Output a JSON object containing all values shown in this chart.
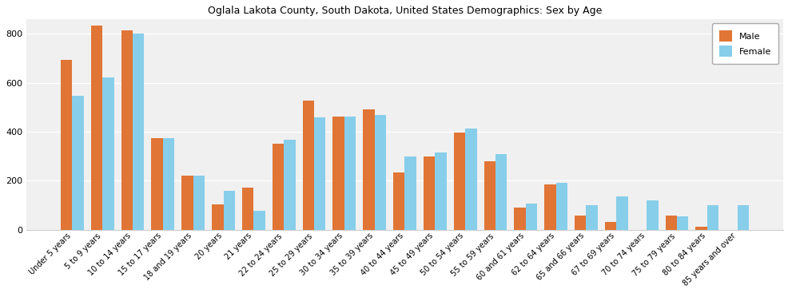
{
  "title": "Oglala Lakota County, South Dakota, United States Demographics: Sex by Age",
  "categories": [
    "Under 5 years",
    "5 to 9 years",
    "10 to 14 years",
    "15 to 17 years",
    "18 and 19 years",
    "20 years",
    "21 years",
    "22 to 24 years",
    "25 to 29 years",
    "30 to 34 years",
    "35 to 39 years",
    "40 to 44 years",
    "45 to 49 years",
    "50 to 54 years",
    "55 to 59 years",
    "60 and 61 years",
    "62 to 64 years",
    "65 and 66 years",
    "67 to 69 years",
    "70 to 74 years",
    "75 to 79 years",
    "80 to 84 years",
    "85 years and over"
  ],
  "male": [
    693,
    835,
    815,
    375,
    220,
    102,
    172,
    350,
    527,
    462,
    490,
    234,
    300,
    397,
    280,
    91,
    185,
    57,
    32,
    0,
    57,
    10,
    0
  ],
  "female": [
    548,
    622,
    800,
    375,
    220,
    157,
    78,
    368,
    457,
    462,
    468,
    297,
    315,
    413,
    310,
    105,
    192,
    100,
    135,
    120,
    55,
    100,
    100
  ],
  "male_color": "#e07535",
  "female_color": "#87ceeb",
  "legend_labels": [
    "Male",
    "Female"
  ],
  "ylim": [
    0,
    860
  ],
  "yticks": [
    0,
    200,
    400,
    600,
    800
  ],
  "title_fontsize": 9,
  "tick_fontsize": 7,
  "ytick_fontsize": 8,
  "bar_width": 0.38,
  "figsize": [
    9.87,
    3.67
  ],
  "dpi": 100
}
